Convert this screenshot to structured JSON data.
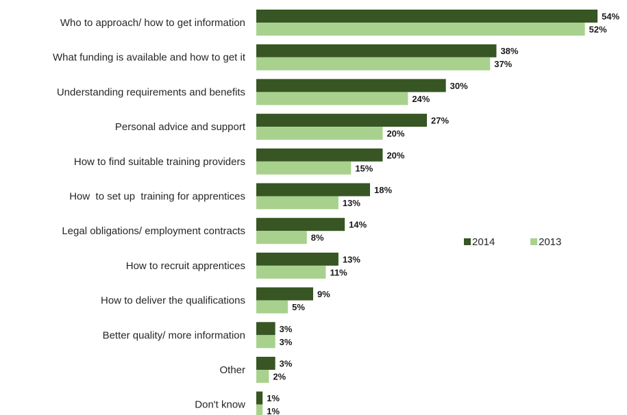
{
  "chart_data": {
    "type": "bar",
    "orientation": "horizontal",
    "categories": [
      "Who to approach/ how to get information",
      "What funding is available and how to get it",
      "Understanding requirements and benefits",
      "Personal advice and support",
      "How to find suitable training providers",
      "How  to set up  training for apprentices",
      "Legal obligations/ employment contracts",
      "How to recruit apprentices",
      "How to deliver the qualifications",
      "Better quality/ more information",
      "Other",
      "Don't know"
    ],
    "series": [
      {
        "name": "2014",
        "color": "#375623",
        "values": [
          54,
          38,
          30,
          27,
          20,
          18,
          14,
          13,
          9,
          3,
          3,
          1
        ]
      },
      {
        "name": "2013",
        "color": "#A9D18E",
        "values": [
          52,
          37,
          24,
          20,
          15,
          13,
          8,
          11,
          5,
          3,
          2,
          1
        ]
      }
    ],
    "value_suffix": "%",
    "xlim": [
      0,
      54
    ],
    "grid": false,
    "legend": {
      "placement": "right",
      "entries": [
        "2014",
        "2013"
      ]
    }
  }
}
